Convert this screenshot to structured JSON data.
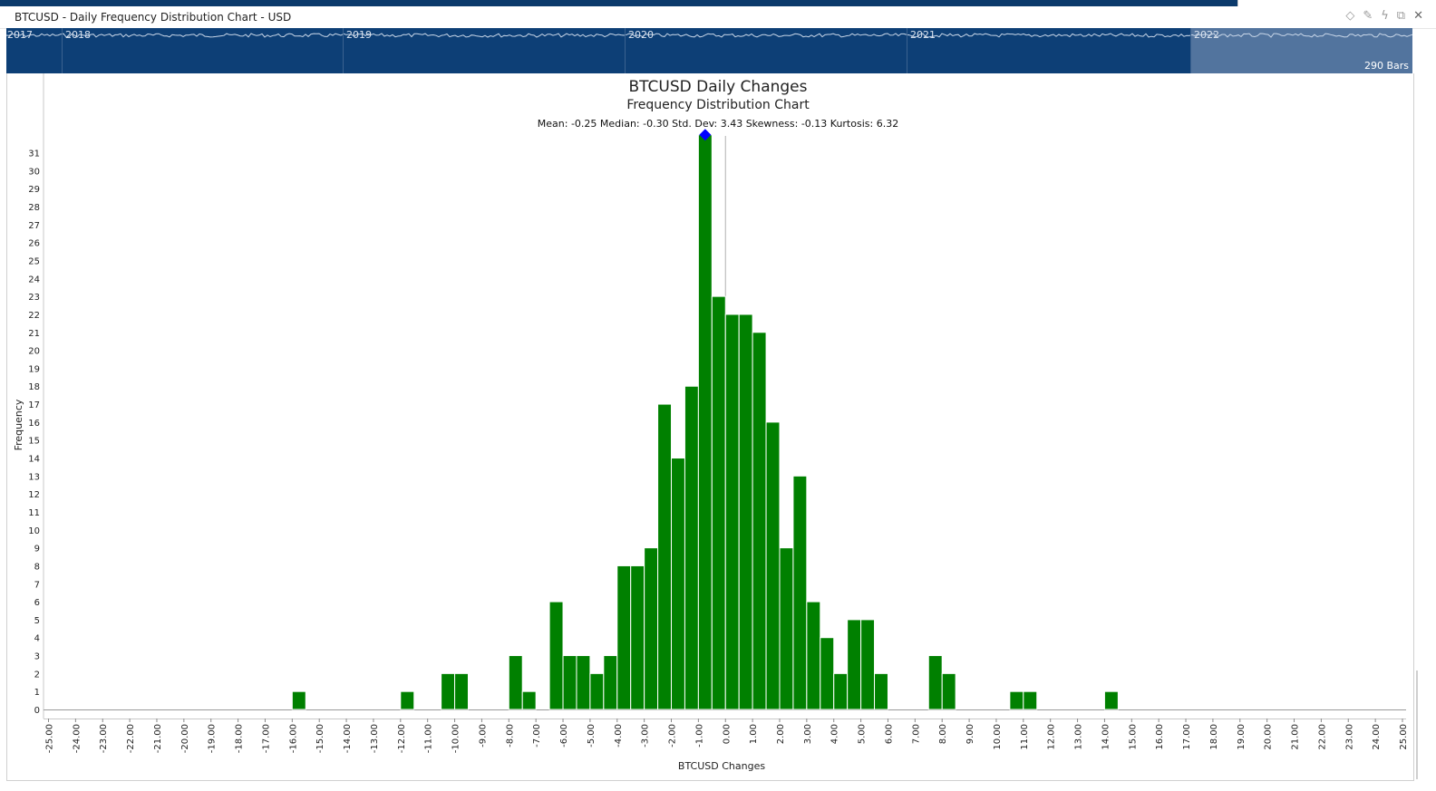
{
  "window": {
    "title": "BTCUSD - Daily Frequency Distribution Chart - USD",
    "icons": [
      "diamond-icon",
      "pin-icon",
      "lightning-icon",
      "restore-icon",
      "close-icon"
    ]
  },
  "navigator": {
    "years": [
      "2017",
      "2018",
      "2019",
      "2020",
      "2021",
      "2022"
    ],
    "bars_label": "290 Bars"
  },
  "colors": {
    "bar": "#008000",
    "marker": "#0000ff",
    "navigator_bg": "#0d3f76",
    "navigator_highlight": "#5f7ea6"
  },
  "chart_data": {
    "type": "bar",
    "title": "BTCUSD Daily Changes",
    "subtitle": "Frequency Distribution Chart",
    "stats": "Mean: -0.25  Median: -0.30  Std. Dev: 3.43  Skewness: -0.13  Kurtosis: 6.32",
    "xlabel": "BTCUSD Changes",
    "ylabel": "Frequency",
    "xlim": [
      -25,
      25
    ],
    "ylim": [
      0,
      32
    ],
    "x_ticks": [
      "-25.00",
      "-24.00",
      "-23.00",
      "-22.00",
      "-21.00",
      "-20.00",
      "-19.00",
      "-18.00",
      "-17.00",
      "-16.00",
      "-15.00",
      "-14.00",
      "-13.00",
      "-12.00",
      "-11.00",
      "-10.00",
      "-9.00",
      "-8.00",
      "-7.00",
      "-6.00",
      "-5.00",
      "-4.00",
      "-3.00",
      "-2.00",
      "-1.00",
      "0.00",
      "1.00",
      "2.00",
      "3.00",
      "4.00",
      "5.00",
      "6.00",
      "7.00",
      "8.00",
      "9.00",
      "10.00",
      "11.00",
      "12.00",
      "13.00",
      "14.00",
      "15.00",
      "16.00",
      "17.00",
      "18.00",
      "19.00",
      "20.00",
      "21.00",
      "22.00",
      "23.00",
      "24.00",
      "25.00"
    ],
    "y_ticks": [
      "0",
      "1",
      "2",
      "3",
      "4",
      "5",
      "6",
      "7",
      "8",
      "9",
      "10",
      "11",
      "12",
      "13",
      "14",
      "15",
      "16",
      "17",
      "18",
      "19",
      "20",
      "21",
      "22",
      "23",
      "24",
      "25",
      "26",
      "27",
      "28",
      "29",
      "30",
      "31"
    ],
    "bin_width": 0.5,
    "bins": [
      {
        "start": -16.0,
        "count": 1
      },
      {
        "start": -12.0,
        "count": 1
      },
      {
        "start": -10.5,
        "count": 2
      },
      {
        "start": -10.0,
        "count": 2
      },
      {
        "start": -8.0,
        "count": 3
      },
      {
        "start": -7.5,
        "count": 1
      },
      {
        "start": -6.5,
        "count": 6
      },
      {
        "start": -6.0,
        "count": 3
      },
      {
        "start": -5.5,
        "count": 3
      },
      {
        "start": -5.0,
        "count": 2
      },
      {
        "start": -4.5,
        "count": 3
      },
      {
        "start": -4.0,
        "count": 8
      },
      {
        "start": -3.5,
        "count": 8
      },
      {
        "start": -3.0,
        "count": 9
      },
      {
        "start": -2.5,
        "count": 17
      },
      {
        "start": -2.0,
        "count": 14
      },
      {
        "start": -1.5,
        "count": 18
      },
      {
        "start": -1.0,
        "count": 32
      },
      {
        "start": -0.5,
        "count": 23
      },
      {
        "start": 0.0,
        "count": 22
      },
      {
        "start": 0.5,
        "count": 22
      },
      {
        "start": 1.0,
        "count": 21
      },
      {
        "start": 1.5,
        "count": 16
      },
      {
        "start": 2.0,
        "count": 9
      },
      {
        "start": 2.5,
        "count": 13
      },
      {
        "start": 3.0,
        "count": 6
      },
      {
        "start": 3.5,
        "count": 4
      },
      {
        "start": 4.0,
        "count": 2
      },
      {
        "start": 4.5,
        "count": 5
      },
      {
        "start": 5.0,
        "count": 5
      },
      {
        "start": 5.5,
        "count": 2
      },
      {
        "start": 7.5,
        "count": 3
      },
      {
        "start": 8.0,
        "count": 2
      },
      {
        "start": 10.5,
        "count": 1
      },
      {
        "start": 11.0,
        "count": 1
      },
      {
        "start": 14.0,
        "count": 1
      }
    ],
    "peak_marker_x": -0.75,
    "zero_line_x": 0.0
  }
}
